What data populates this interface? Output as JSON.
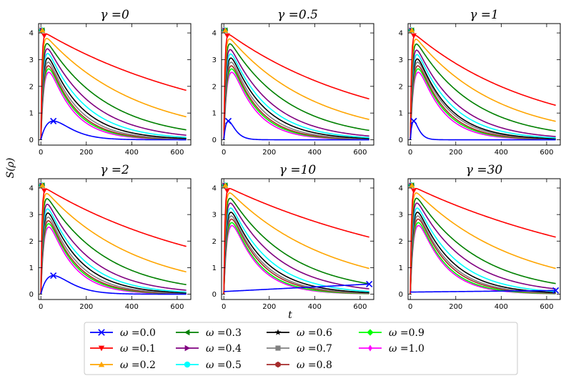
{
  "chart_data": {
    "type": "line",
    "title_prefix": "γ =",
    "xlabel": "t",
    "ylabel": "S(ρ)",
    "xlim": [
      -10,
      660
    ],
    "ylim": [
      -0.2,
      4.35
    ],
    "xticks": [
      0,
      200,
      400,
      600
    ],
    "yticks": [
      0,
      1,
      2,
      3,
      4
    ],
    "legend_prefix": "ω =",
    "legend_location": "bottom-center",
    "series": [
      {
        "omega": "0.0",
        "color": "#0000ff",
        "marker": "x"
      },
      {
        "omega": "0.1",
        "color": "#ff0000",
        "marker": "triangle-down"
      },
      {
        "omega": "0.2",
        "color": "#ffa500",
        "marker": "triangle-up"
      },
      {
        "omega": "0.3",
        "color": "#008000",
        "marker": "triangle-left"
      },
      {
        "omega": "0.4",
        "color": "#800080",
        "marker": "triangle-right"
      },
      {
        "omega": "0.5",
        "color": "#00ffff",
        "marker": "circle"
      },
      {
        "omega": "0.6",
        "color": "#000000",
        "marker": "star"
      },
      {
        "omega": "0.7",
        "color": "#808080",
        "marker": "square"
      },
      {
        "omega": "0.8",
        "color": "#a52a2a",
        "marker": "hexagon"
      },
      {
        "omega": "0.9",
        "color": "#00ff00",
        "marker": "diamond"
      },
      {
        "omega": "1.0",
        "color": "#ff00ff",
        "marker": "thin-diamond"
      }
    ],
    "panels": [
      {
        "gamma": "0",
        "s_end": [
          0.01,
          1.85,
          0.86,
          0.37,
          0.17,
          0.09,
          0.05,
          0.03,
          0.02,
          0.015,
          0.01
        ],
        "w0_peak": [
          55,
          0.7
        ]
      },
      {
        "gamma": "0.5",
        "s_end": [
          0.01,
          1.53,
          0.76,
          0.35,
          0.14,
          0.08,
          0.05,
          0.03,
          0.02,
          0.015,
          0.01
        ],
        "w0_peak": [
          20,
          0.7
        ]
      },
      {
        "gamma": "1",
        "s_end": [
          0.0,
          1.29,
          0.69,
          0.33,
          0.12,
          0.07,
          0.04,
          0.03,
          0.02,
          0.015,
          0.01
        ],
        "w0_peak": [
          15,
          0.7
        ]
      },
      {
        "gamma": "2",
        "s_end": [
          0.01,
          1.8,
          0.84,
          0.36,
          0.15,
          0.08,
          0.05,
          0.03,
          0.02,
          0.015,
          0.01
        ],
        "w0_peak": [
          55,
          0.7
        ]
      },
      {
        "gamma": "10",
        "s_end": [
          0.38,
          2.15,
          0.97,
          0.39,
          0.2,
          0.1,
          0.06,
          0.04,
          0.03,
          0.02,
          0.015
        ],
        "w0_line": [
          0.1,
          0.38
        ]
      },
      {
        "gamma": "30",
        "s_end": [
          0.14,
          2.15,
          0.97,
          0.4,
          0.2,
          0.1,
          0.06,
          0.04,
          0.03,
          0.02,
          0.015
        ],
        "w0_line": [
          0.08,
          0.14
        ]
      }
    ]
  }
}
